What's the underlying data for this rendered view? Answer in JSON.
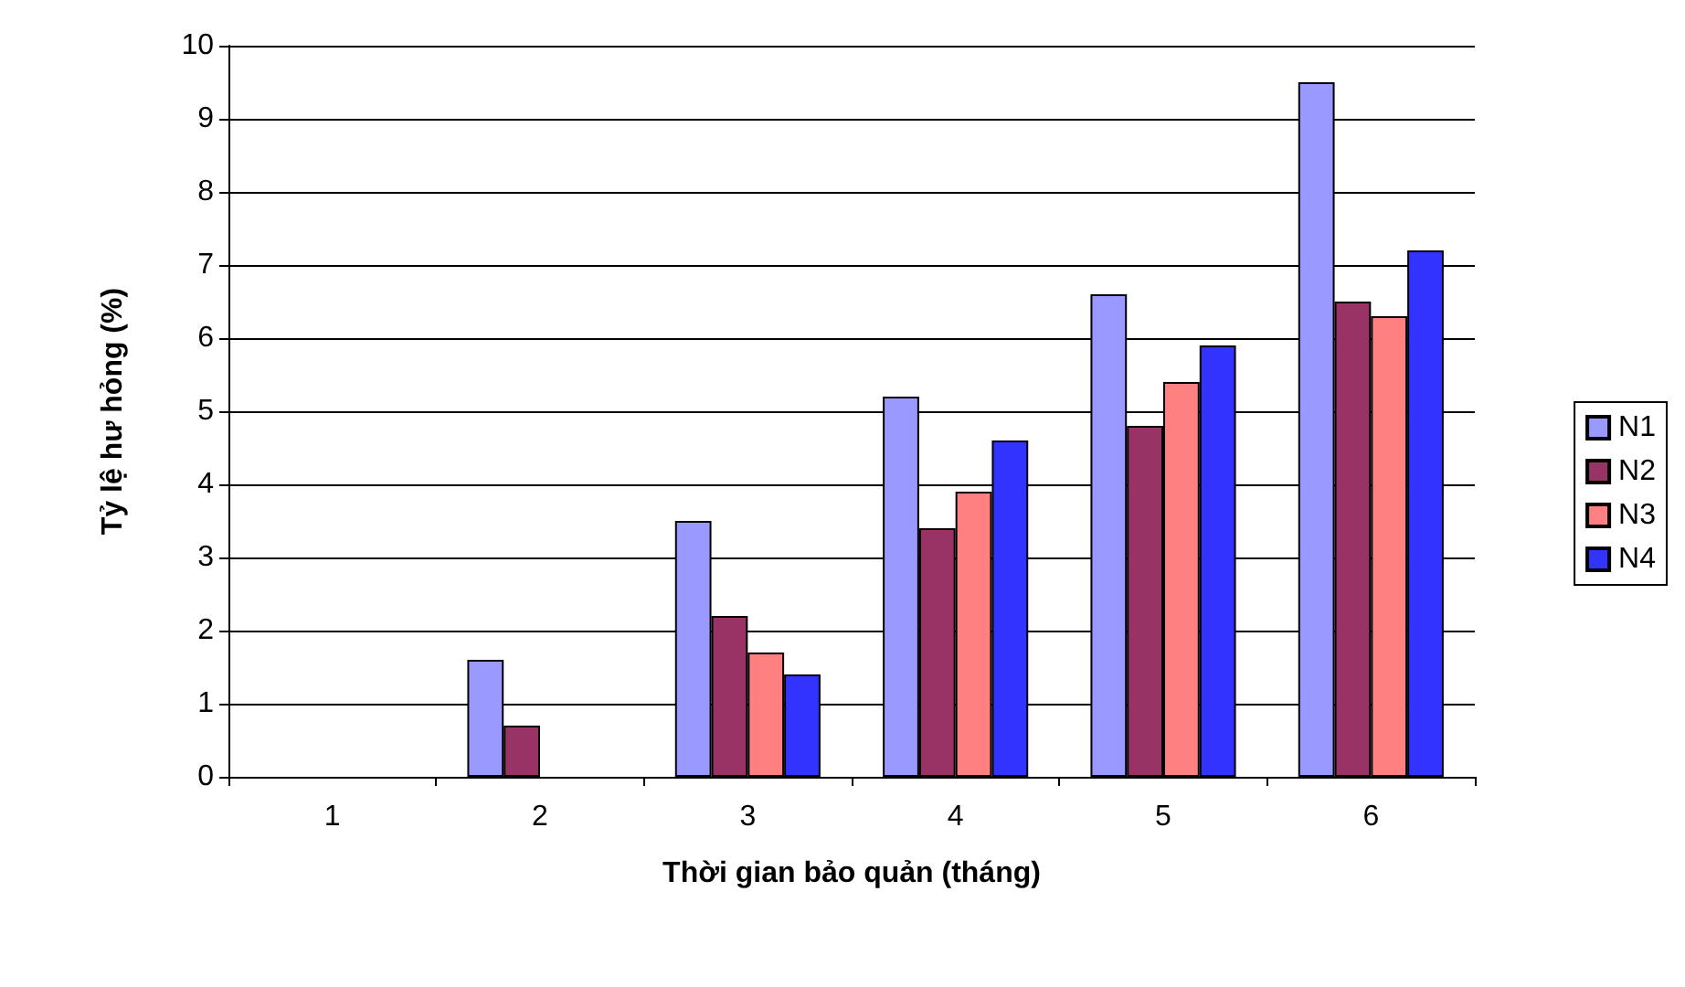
{
  "chart_data": {
    "type": "bar",
    "xlabel": "Thời gian bảo quản (tháng)",
    "ylabel": "Tỷ lệ hư hỏng (%)",
    "categories": [
      "1",
      "2",
      "3",
      "4",
      "5",
      "6"
    ],
    "series": [
      {
        "name": "N1",
        "color": "#9999ff",
        "values": [
          0,
          1.6,
          3.5,
          5.2,
          6.6,
          9.5
        ]
      },
      {
        "name": "N2",
        "color": "#993366",
        "values": [
          0,
          0.7,
          2.2,
          3.4,
          4.8,
          6.5
        ]
      },
      {
        "name": "N3",
        "color": "#ff8080",
        "values": [
          0,
          0,
          1.7,
          3.9,
          5.4,
          6.3
        ]
      },
      {
        "name": "N4",
        "color": "#3333ff",
        "values": [
          0,
          0,
          1.4,
          4.6,
          5.9,
          7.2
        ]
      }
    ],
    "ylim": [
      0,
      10
    ],
    "yticks": [
      0,
      1,
      2,
      3,
      4,
      5,
      6,
      7,
      8,
      9,
      10
    ],
    "grid": "y",
    "legend": "right"
  }
}
